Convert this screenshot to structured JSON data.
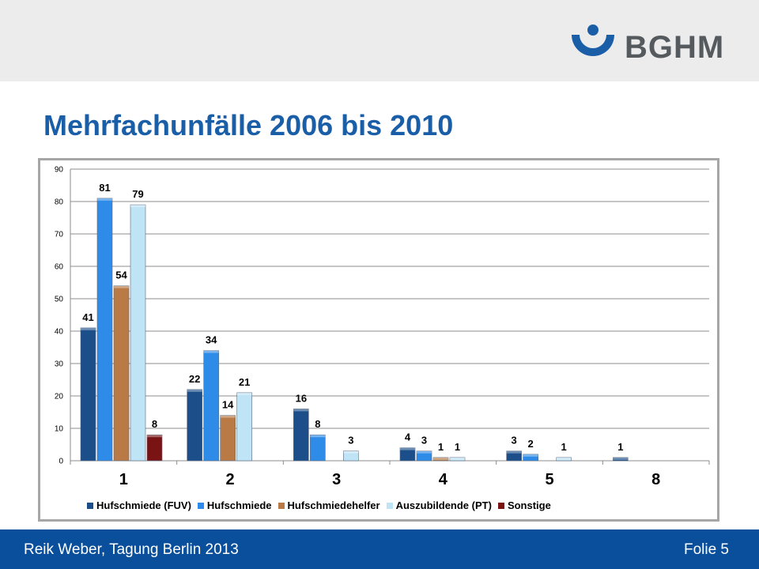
{
  "header": {
    "logo_text": "BGHM"
  },
  "slide": {
    "title": "Mehrfachunfälle 2006 bis 2010"
  },
  "footer": {
    "left": "Reik Weber, Tagung Berlin 2013",
    "right": "Folie 5"
  },
  "colors": {
    "brand_blue": "#0a4f9c",
    "title_blue": "#1b5ea8"
  },
  "chart_data": {
    "type": "bar",
    "categories": [
      "1",
      "2",
      "3",
      "4",
      "5",
      "8"
    ],
    "ylim": [
      0,
      90
    ],
    "yticks": [
      0,
      10,
      20,
      30,
      40,
      50,
      60,
      70,
      80,
      90
    ],
    "grid": true,
    "legend_position": "bottom",
    "series": [
      {
        "name": "Hufschmiede (FUV)",
        "color": "#1c4f8a",
        "values": [
          41,
          22,
          16,
          4,
          3,
          1
        ]
      },
      {
        "name": "Hufschmiede",
        "color": "#2e8ce8",
        "values": [
          81,
          34,
          8,
          3,
          2,
          null
        ]
      },
      {
        "name": "Hufschmiedehelfer",
        "color": "#b97a45",
        "values": [
          54,
          14,
          null,
          1,
          null,
          null
        ]
      },
      {
        "name": "Auszubildende (PT)",
        "color": "#bfe4f6",
        "values": [
          79,
          21,
          3,
          1,
          1,
          null
        ]
      },
      {
        "name": "Sonstige",
        "color": "#7a1414",
        "values": [
          8,
          null,
          null,
          null,
          null,
          null
        ]
      }
    ]
  }
}
